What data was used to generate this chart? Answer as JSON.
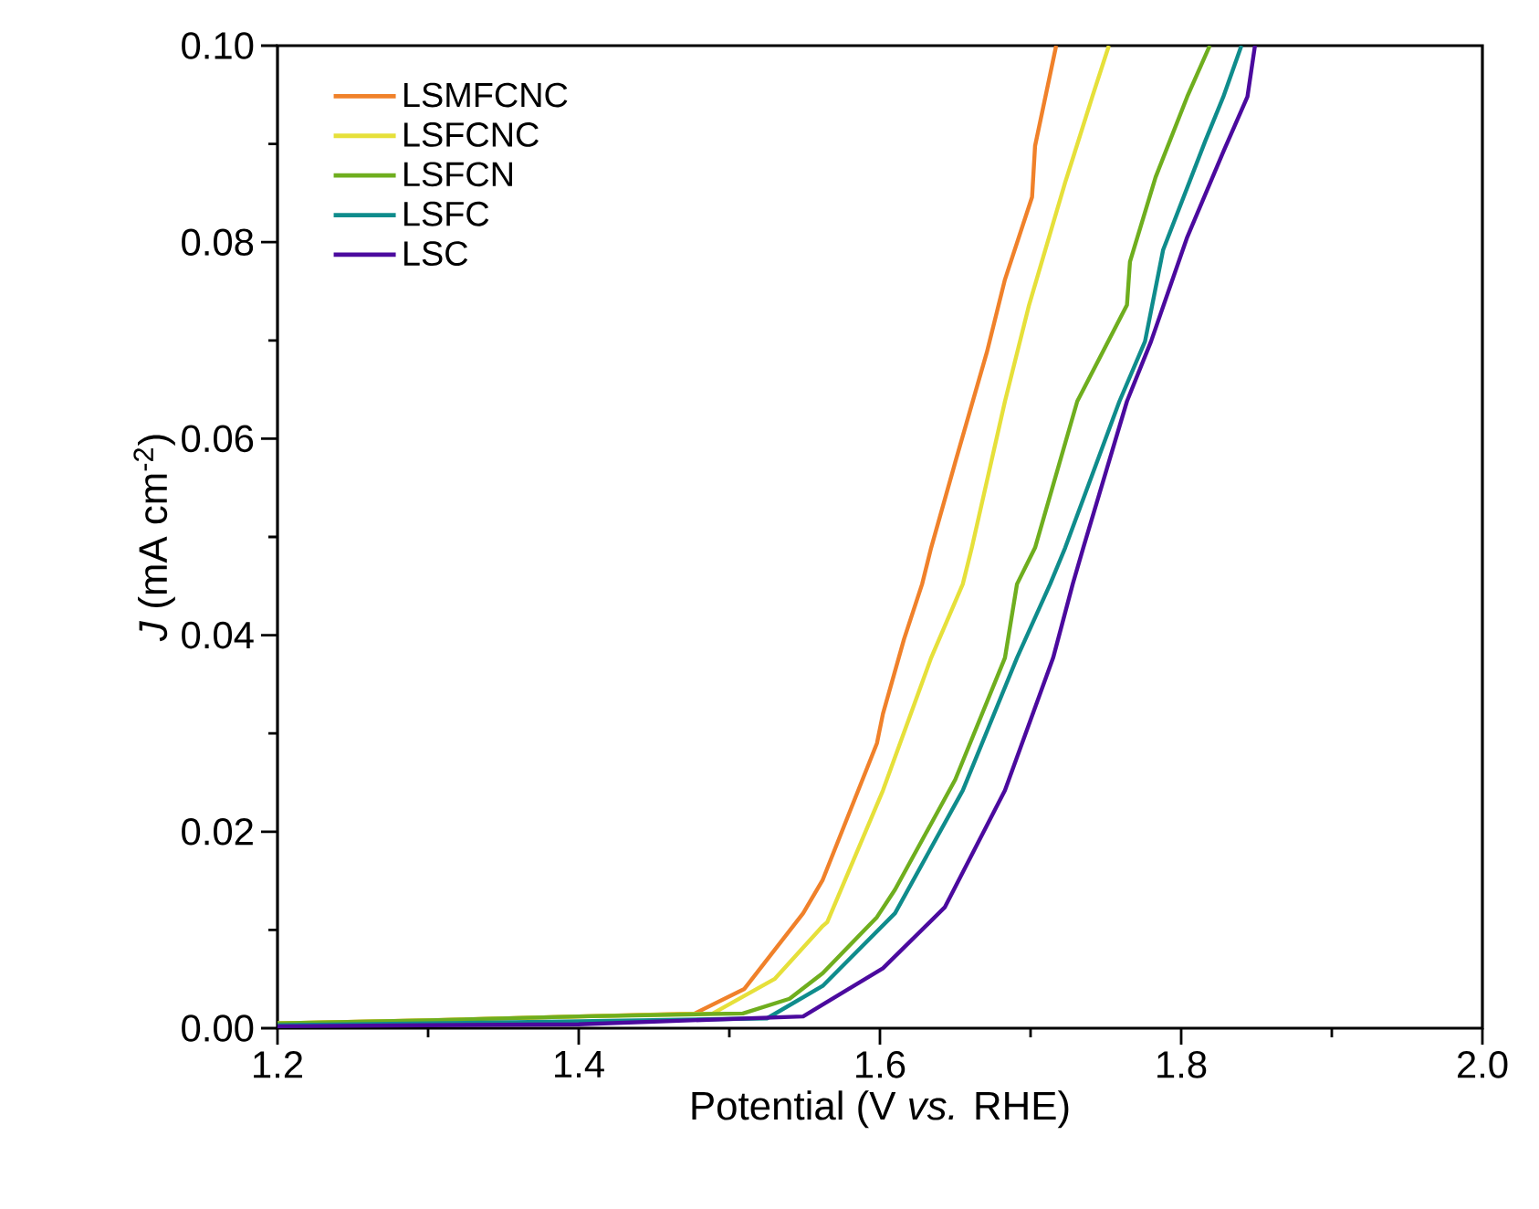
{
  "chart_data": {
    "type": "line",
    "xlabel": "Potential (V *vs.* RHE)",
    "ylabel": "*J* (mA cm$^{-2}$)",
    "xlim": [
      1.2,
      2.0
    ],
    "ylim": [
      0,
      0.1
    ],
    "xticks": [
      {
        "value": 1.2,
        "label": "1.2"
      },
      {
        "value": 1.4,
        "label": "1.4"
      },
      {
        "value": 1.6,
        "label": "1.6"
      },
      {
        "value": 1.8,
        "label": "1.8"
      },
      {
        "value": 2.0,
        "label": "2.0"
      }
    ],
    "yticks": [
      {
        "value": 0,
        "label": "0.00"
      },
      {
        "value": 0.02,
        "label": "0.02"
      },
      {
        "value": 0.04,
        "label": "0.04"
      },
      {
        "value": 0.06,
        "label": "0.06"
      },
      {
        "value": 0.08,
        "label": "0.08"
      },
      {
        "value": 0.1,
        "label": "0.10"
      }
    ],
    "grid": false,
    "legend": "top left",
    "marker": "none",
    "line_style": "solid",
    "series": [
      {
        "name": "LSMFCNC",
        "color": "#f0812a",
        "x": [
          1.2,
          1.3,
          1.4,
          1.477,
          1.51,
          1.549,
          1.562,
          1.598,
          1.602,
          1.616,
          1.628,
          1.634,
          1.65,
          1.671,
          1.683,
          1.701,
          1.703,
          1.717
        ],
        "values": [
          0.0005,
          0.0008,
          0.0012,
          0.0015,
          0.004,
          0.0117,
          0.0151,
          0.029,
          0.032,
          0.0396,
          0.0452,
          0.0489,
          0.0576,
          0.0688,
          0.0762,
          0.0846,
          0.0898,
          0.1
        ]
      },
      {
        "name": "LSFCNC",
        "color": "#e6e03a",
        "x": [
          1.2,
          1.3,
          1.4,
          1.489,
          1.53,
          1.562,
          1.565,
          1.602,
          1.634,
          1.655,
          1.661,
          1.683,
          1.699,
          1.723,
          1.728,
          1.741,
          1.752
        ],
        "values": [
          0.0005,
          0.0008,
          0.0012,
          0.0015,
          0.005,
          0.0104,
          0.0108,
          0.0242,
          0.0377,
          0.0452,
          0.0489,
          0.0638,
          0.0736,
          0.0861,
          0.0885,
          0.0948,
          0.1
        ]
      },
      {
        "name": "LSFCN",
        "color": "#6fae1e",
        "x": [
          1.2,
          1.3,
          1.4,
          1.509,
          1.54,
          1.562,
          1.598,
          1.61,
          1.65,
          1.683,
          1.691,
          1.703,
          1.731,
          1.764,
          1.766,
          1.783,
          1.804,
          1.819
        ],
        "values": [
          0.0005,
          0.0008,
          0.0012,
          0.0015,
          0.003,
          0.0056,
          0.0113,
          0.0141,
          0.0253,
          0.0377,
          0.0452,
          0.0489,
          0.0638,
          0.0736,
          0.078,
          0.0866,
          0.0948,
          0.1
        ]
      },
      {
        "name": "LSFC",
        "color": "#0f8c8c",
        "x": [
          1.2,
          1.3,
          1.4,
          1.525,
          1.562,
          1.61,
          1.655,
          1.691,
          1.713,
          1.723,
          1.759,
          1.776,
          1.788,
          1.816,
          1.828,
          1.84
        ],
        "values": [
          0.0003,
          0.0005,
          0.0007,
          0.001,
          0.0043,
          0.0117,
          0.0242,
          0.0377,
          0.0452,
          0.0489,
          0.0638,
          0.0699,
          0.0792,
          0.0903,
          0.0948,
          0.1
        ]
      },
      {
        "name": "LSC",
        "color": "#4b0a9e",
        "x": [
          1.2,
          1.3,
          1.4,
          1.549,
          1.562,
          1.602,
          1.643,
          1.683,
          1.715,
          1.728,
          1.735,
          1.764,
          1.78,
          1.804,
          1.828,
          1.844,
          1.849
        ],
        "values": [
          0.0002,
          0.0003,
          0.0004,
          0.0012,
          0.0024,
          0.0061,
          0.0123,
          0.0242,
          0.0377,
          0.0452,
          0.0489,
          0.0638,
          0.0699,
          0.0805,
          0.0892,
          0.0948,
          0.1
        ]
      }
    ]
  }
}
